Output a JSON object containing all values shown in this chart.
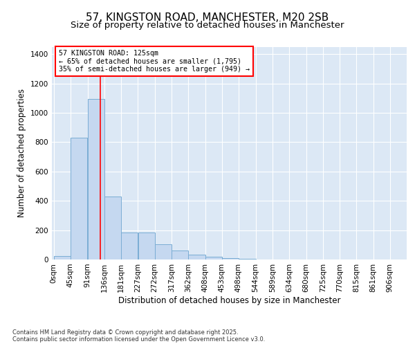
{
  "title": "57, KINGSTON ROAD, MANCHESTER, M20 2SB",
  "subtitle": "Size of property relative to detached houses in Manchester",
  "xlabel": "Distribution of detached houses by size in Manchester",
  "ylabel": "Number of detached properties",
  "bin_labels": [
    "0sqm",
    "45sqm",
    "91sqm",
    "136sqm",
    "181sqm",
    "227sqm",
    "272sqm",
    "317sqm",
    "362sqm",
    "408sqm",
    "453sqm",
    "498sqm",
    "544sqm",
    "589sqm",
    "634sqm",
    "680sqm",
    "725sqm",
    "770sqm",
    "815sqm",
    "861sqm",
    "906sqm"
  ],
  "bar_values": [
    25,
    830,
    1095,
    430,
    185,
    185,
    105,
    60,
    35,
    20,
    10,
    5,
    2,
    0,
    0,
    0,
    0,
    0,
    0,
    0,
    0
  ],
  "bar_color": "#c5d8f0",
  "bar_edge_color": "#7aadd4",
  "background_color": "#dce8f5",
  "grid_color": "#ffffff",
  "red_line_x": 125,
  "annotation_box_text": "57 KINGSTON ROAD: 125sqm\n← 65% of detached houses are smaller (1,795)\n35% of semi-detached houses are larger (949) →",
  "ylim": [
    0,
    1450
  ],
  "yticks": [
    0,
    200,
    400,
    600,
    800,
    1000,
    1200,
    1400
  ],
  "footer_text": "Contains HM Land Registry data © Crown copyright and database right 2025.\nContains public sector information licensed under the Open Government Licence v3.0.",
  "title_fontsize": 11,
  "subtitle_fontsize": 9.5,
  "label_fontsize": 8.5,
  "tick_fontsize": 7.5,
  "bin_edges": [
    0,
    45,
    91,
    136,
    181,
    227,
    272,
    317,
    362,
    408,
    453,
    498,
    544,
    589,
    634,
    680,
    725,
    770,
    815,
    861,
    906,
    951
  ]
}
